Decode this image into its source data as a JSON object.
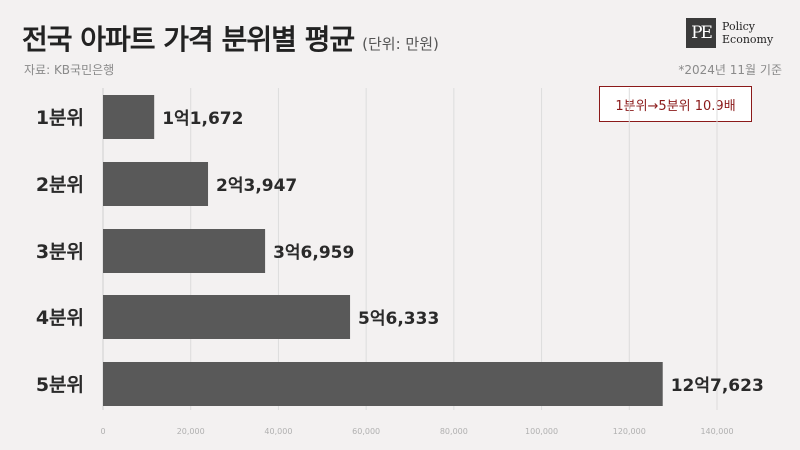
{
  "header": {
    "title": "전국 아파트 가격 분위별 평균",
    "unit": "(단위: 만원)",
    "source": "자료: KB국민은행",
    "note": "*2024년 11월 기준"
  },
  "logo": {
    "mark": "PE",
    "line1": "Policy",
    "line2": "Economy"
  },
  "callout": "1분위→5분위 10.9배",
  "colors": {
    "bar": "#595959",
    "callout": "#8b1a1a",
    "background": "#f3f1f1"
  },
  "chart_data": {
    "type": "bar",
    "orientation": "horizontal",
    "categories": [
      "1분위",
      "2분위",
      "3분위",
      "4분위",
      "5분위"
    ],
    "values": [
      11672,
      23947,
      36959,
      56333,
      127623
    ],
    "data_labels": [
      "1억1,672",
      "2억3,947",
      "3억6,959",
      "5억6,333",
      "12억7,623"
    ],
    "xlim": [
      0,
      140000
    ],
    "x_ticks": [
      0,
      20000,
      40000,
      60000,
      80000,
      100000,
      120000,
      140000
    ],
    "x_tick_labels": [
      "0",
      "20,000",
      "40,000",
      "60,000",
      "80,000",
      "100,000",
      "120,000",
      "140,000"
    ],
    "grid": true,
    "title": "전국 아파트 가격 분위별 평균",
    "xlabel": "",
    "ylabel": ""
  }
}
